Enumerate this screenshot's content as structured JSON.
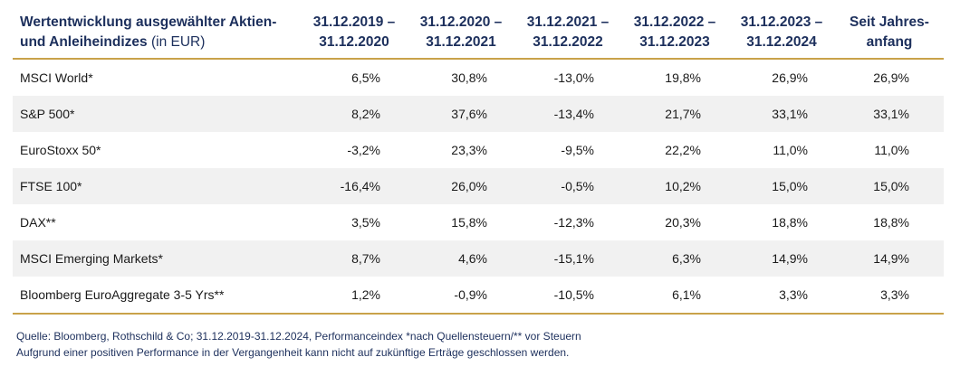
{
  "table": {
    "header": {
      "title_line1": "Wertentwicklung ausgewählter Aktien-",
      "title_line2": "und Anleiheindizes",
      "title_unit": " (in EUR)",
      "periods": [
        {
          "line1": "31.12.2019 –",
          "line2": "31.12.2020"
        },
        {
          "line1": "31.12.2020 –",
          "line2": "31.12.2021"
        },
        {
          "line1": "31.12.2021 –",
          "line2": "31.12.2022"
        },
        {
          "line1": "31.12.2022 –",
          "line2": "31.12.2023"
        },
        {
          "line1": "31.12.2023 –",
          "line2": "31.12.2024"
        },
        {
          "line1": "Seit Jahres-",
          "line2": "anfang"
        }
      ]
    },
    "rows": [
      {
        "name": "MSCI World*",
        "values": [
          "6,5%",
          "30,8%",
          "-13,0%",
          "19,8%",
          "26,9%",
          "26,9%"
        ]
      },
      {
        "name": "S&P 500*",
        "values": [
          "8,2%",
          "37,6%",
          "-13,4%",
          "21,7%",
          "33,1%",
          "33,1%"
        ]
      },
      {
        "name": "EuroStoxx 50*",
        "values": [
          "-3,2%",
          "23,3%",
          "-9,5%",
          "22,2%",
          "11,0%",
          "11,0%"
        ]
      },
      {
        "name": "FTSE 100*",
        "values": [
          "-16,4%",
          "26,0%",
          "-0,5%",
          "10,2%",
          "15,0%",
          "15,0%"
        ]
      },
      {
        "name": "DAX**",
        "values": [
          "3,5%",
          "15,8%",
          "-12,3%",
          "20,3%",
          "18,8%",
          "18,8%"
        ]
      },
      {
        "name": "MSCI Emerging Markets*",
        "values": [
          "8,7%",
          "4,6%",
          "-15,1%",
          "6,3%",
          "14,9%",
          "14,9%"
        ]
      },
      {
        "name": "Bloomberg EuroAggregate 3-5 Yrs**",
        "values": [
          "1,2%",
          "-0,9%",
          "-10,5%",
          "6,1%",
          "3,3%",
          "3,3%"
        ]
      }
    ]
  },
  "footer": {
    "source": "Quelle:  Bloomberg, Rothschild & Co;  31.12.2019-31.12.2024, Performanceindex *nach Quellensteuern/** vor Steuern",
    "disclaimer": "Aufgrund einer positiven Performance in der Vergangenheit kann nicht auf zukünftige Erträge geschlossen werden."
  },
  "colors": {
    "header_text": "#1c2f5c",
    "rule": "#c9a24a",
    "row_shade": "#f1f1f1"
  }
}
